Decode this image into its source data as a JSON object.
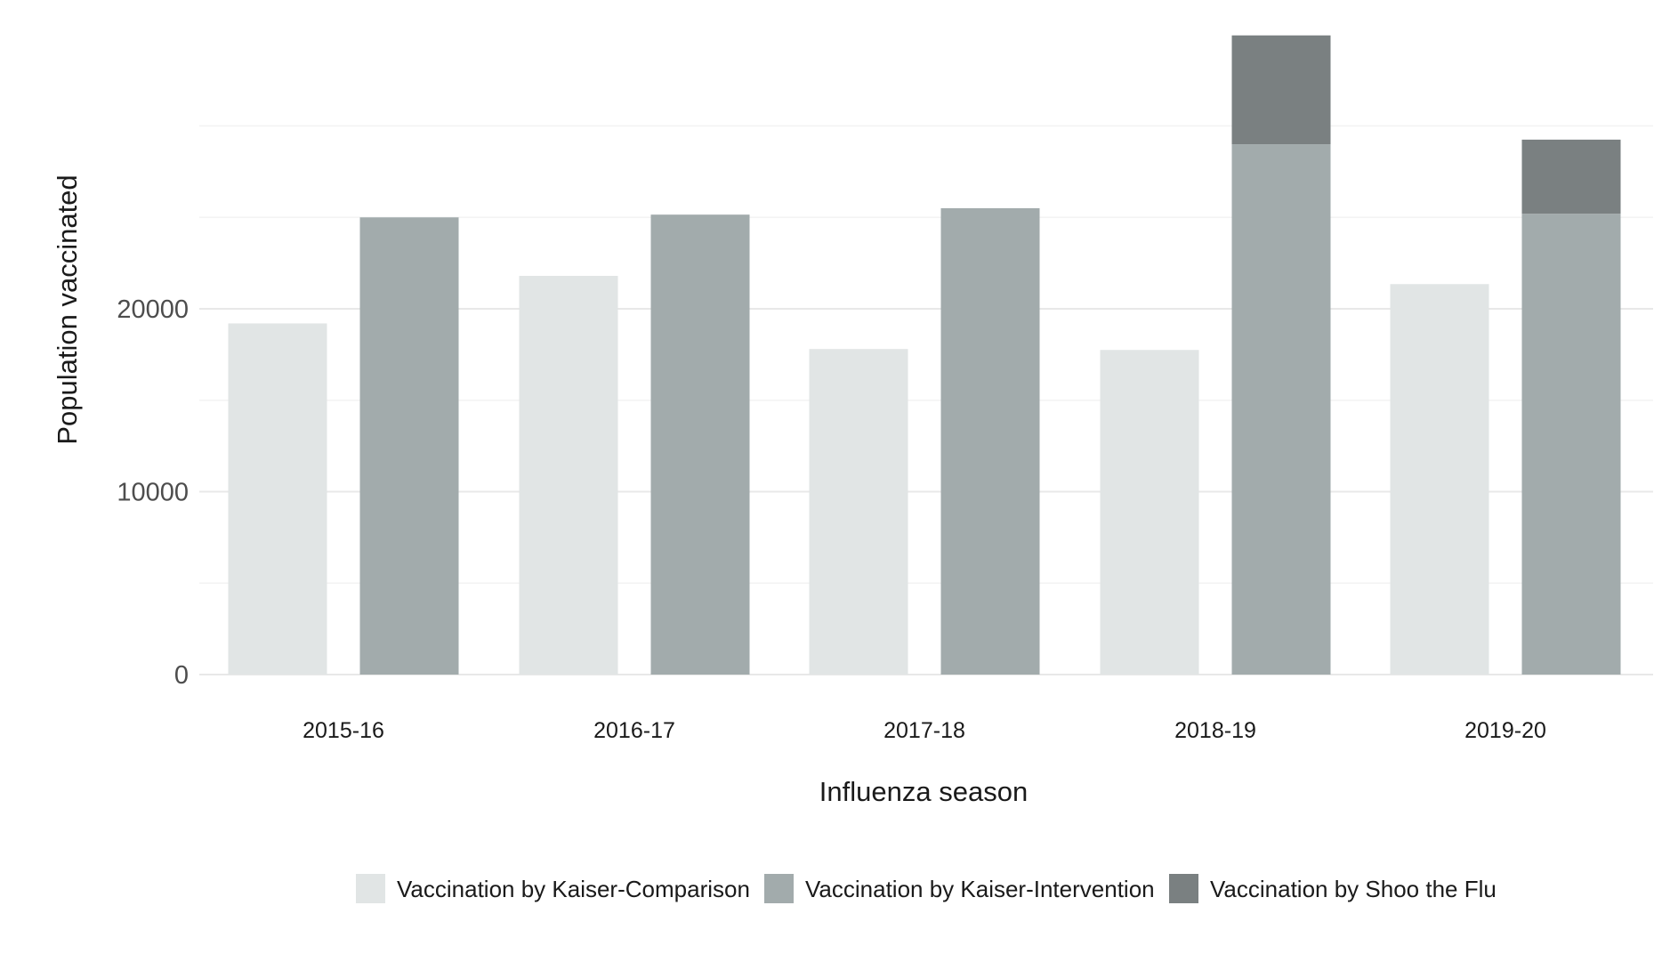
{
  "chart_data": {
    "type": "bar",
    "stacked_groups": true,
    "title": "",
    "xlabel": "Influenza season",
    "ylabel": "Population vaccinated",
    "categories": [
      "2015-16",
      "2016-17",
      "2017-18",
      "2018-19",
      "2019-20"
    ],
    "series": [
      {
        "name": "Vaccination by Kaiser-Comparison",
        "group": "comparison",
        "color": "#e1e5e5",
        "values": [
          19200,
          21800,
          17800,
          17750,
          21350
        ]
      },
      {
        "name": "Vaccination by Kaiser-Intervention",
        "group": "intervention",
        "color": "#a2abac",
        "values": [
          25000,
          25150,
          25500,
          29000,
          25200
        ]
      },
      {
        "name": "Vaccination by Shoo the Flu",
        "group": "intervention",
        "color": "#7a8081",
        "values": [
          0,
          0,
          0,
          5950,
          4050
        ]
      }
    ],
    "ylim": [
      0,
      35000
    ],
    "yticks": [
      0,
      10000,
      20000
    ],
    "ytick_labels": [
      "0",
      "10000",
      "20000"
    ],
    "minor_gridlines": [
      5000,
      15000,
      25000,
      30000
    ],
    "grid": true,
    "legend_position": "bottom"
  }
}
